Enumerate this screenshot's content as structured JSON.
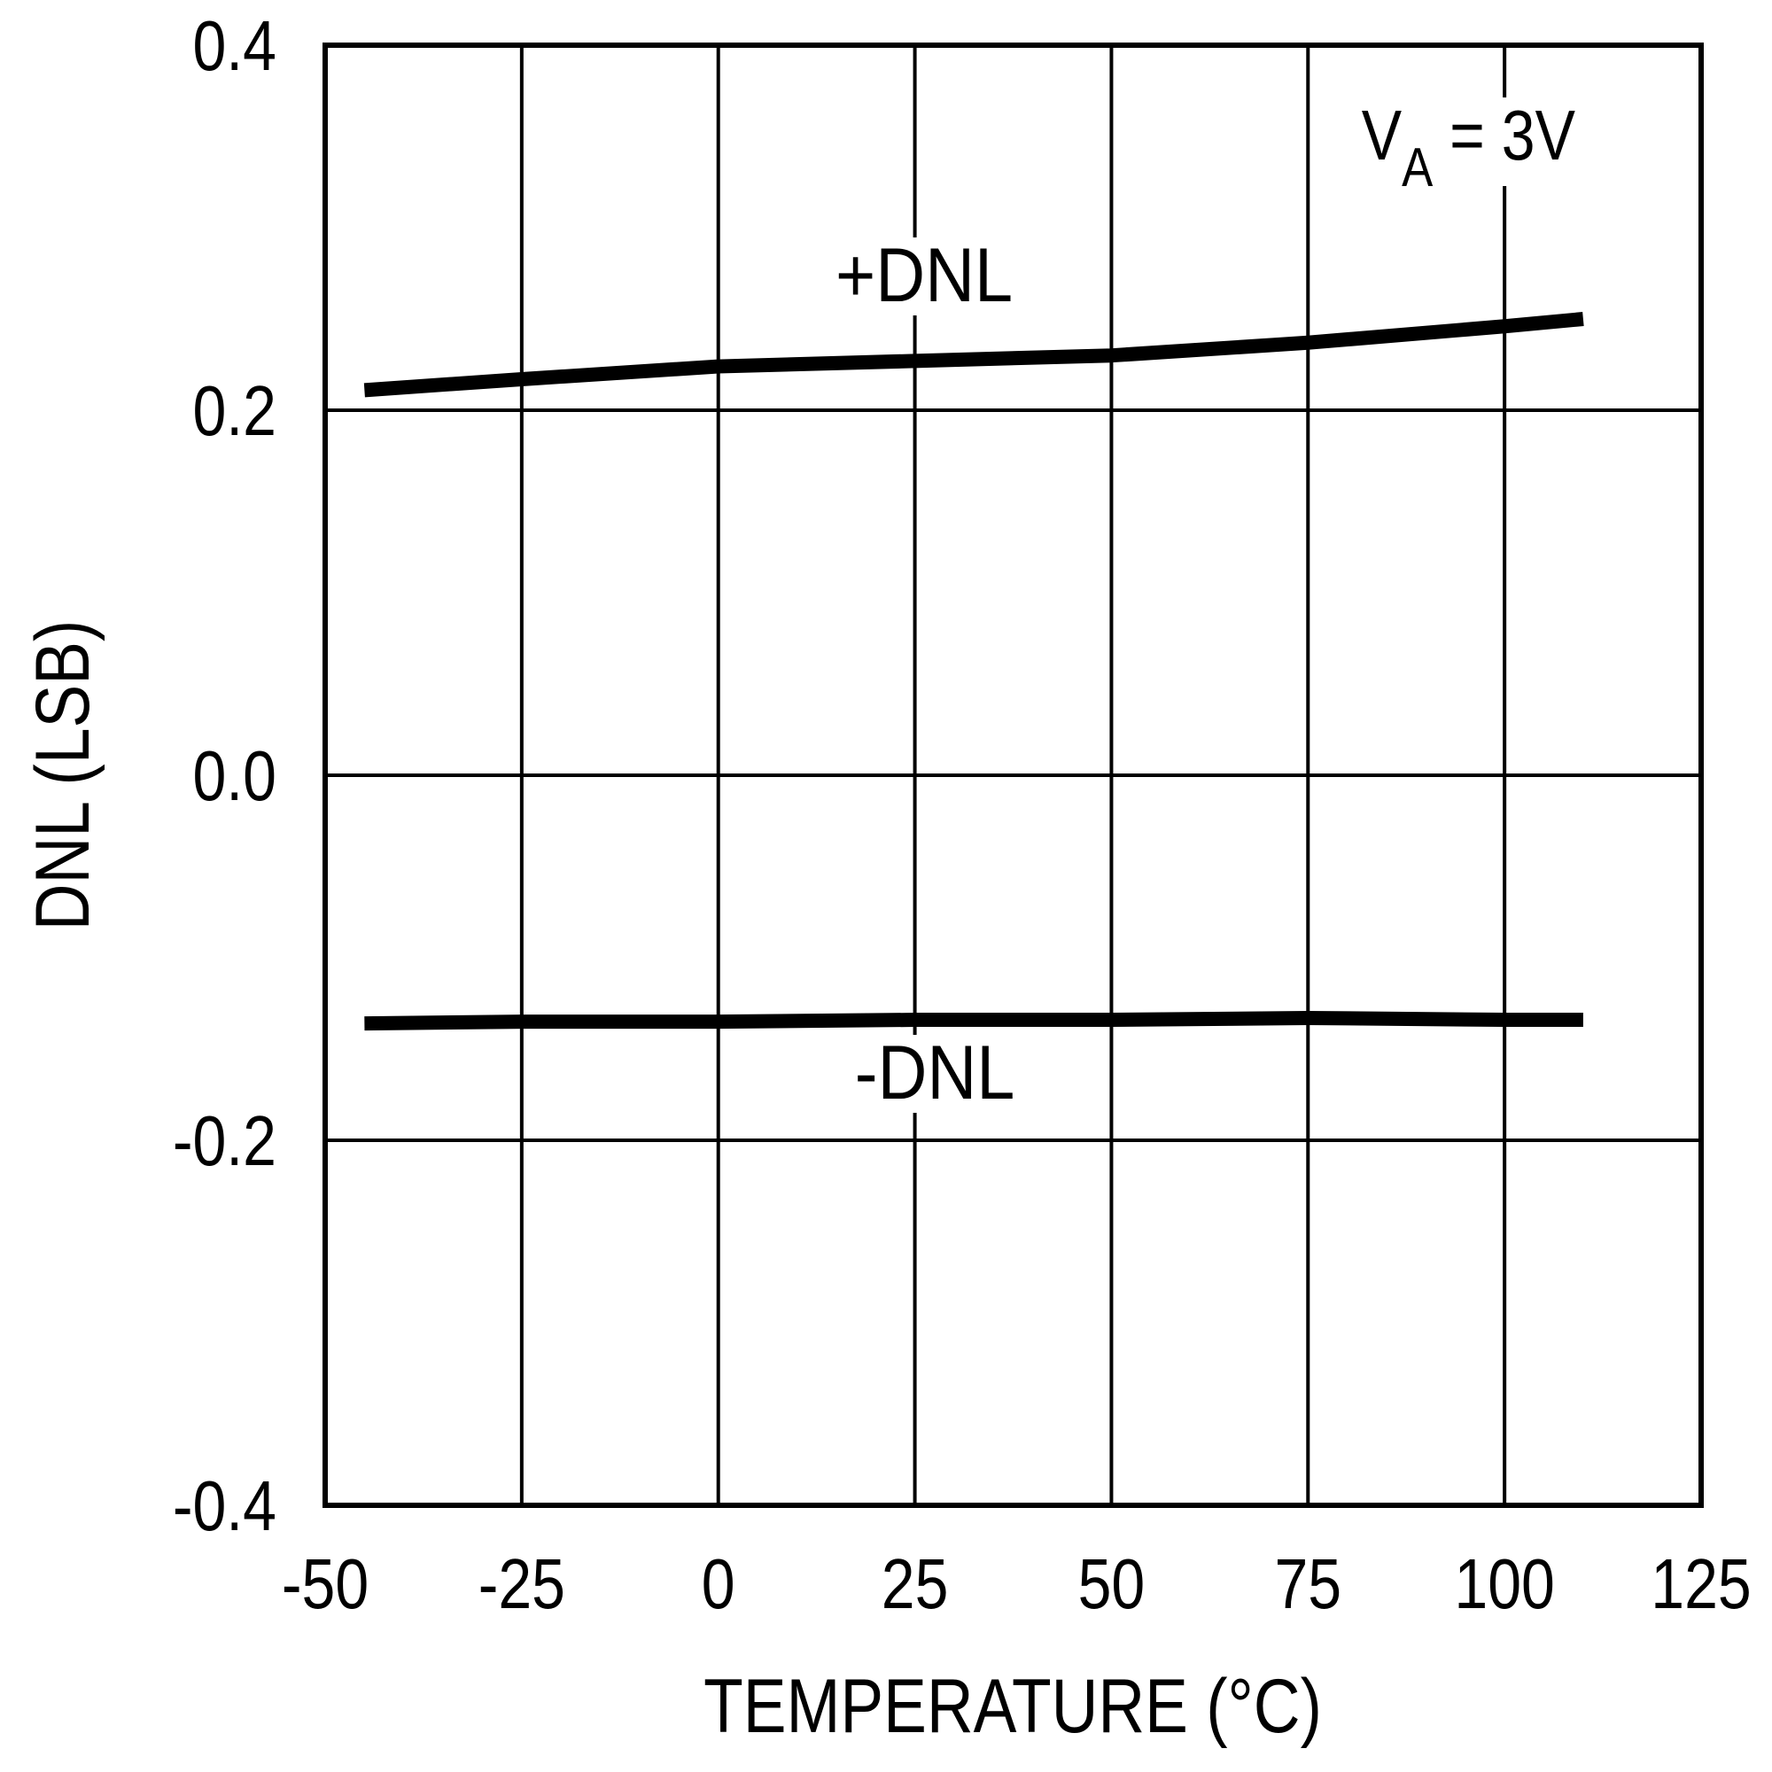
{
  "chart_data": {
    "type": "line",
    "title": "",
    "xlabel": "TEMPERATURE (°C)",
    "ylabel": "DNL (LSB)",
    "xlim": [
      -50,
      125
    ],
    "ylim": [
      -0.4,
      0.4
    ],
    "xticks": [
      -50,
      -25,
      0,
      25,
      50,
      75,
      100,
      125
    ],
    "xtick_labels": [
      "-50",
      "-25",
      "0",
      "25",
      "50",
      "75",
      "100",
      "125"
    ],
    "yticks": [
      0.4,
      0.2,
      0.0,
      -0.2,
      -0.4
    ],
    "ytick_labels": [
      "0.4",
      "0.2",
      "0.0",
      "-0.2",
      "-0.4"
    ],
    "grid": true,
    "annotation": {
      "main": "V",
      "subscript": "A",
      "rest": " = 3V"
    },
    "series": [
      {
        "name": "+DNL",
        "color": "#000000",
        "x": [
          -45,
          -25,
          0,
          25,
          50,
          75,
          100,
          110
        ],
        "y": [
          0.211,
          0.217,
          0.224,
          0.227,
          0.23,
          0.237,
          0.246,
          0.25
        ]
      },
      {
        "name": "-DNL",
        "color": "#000000",
        "x": [
          -45,
          -25,
          0,
          25,
          50,
          75,
          100,
          110
        ],
        "y": [
          -0.136,
          -0.135,
          -0.135,
          -0.134,
          -0.134,
          -0.133,
          -0.134,
          -0.134
        ]
      }
    ]
  }
}
